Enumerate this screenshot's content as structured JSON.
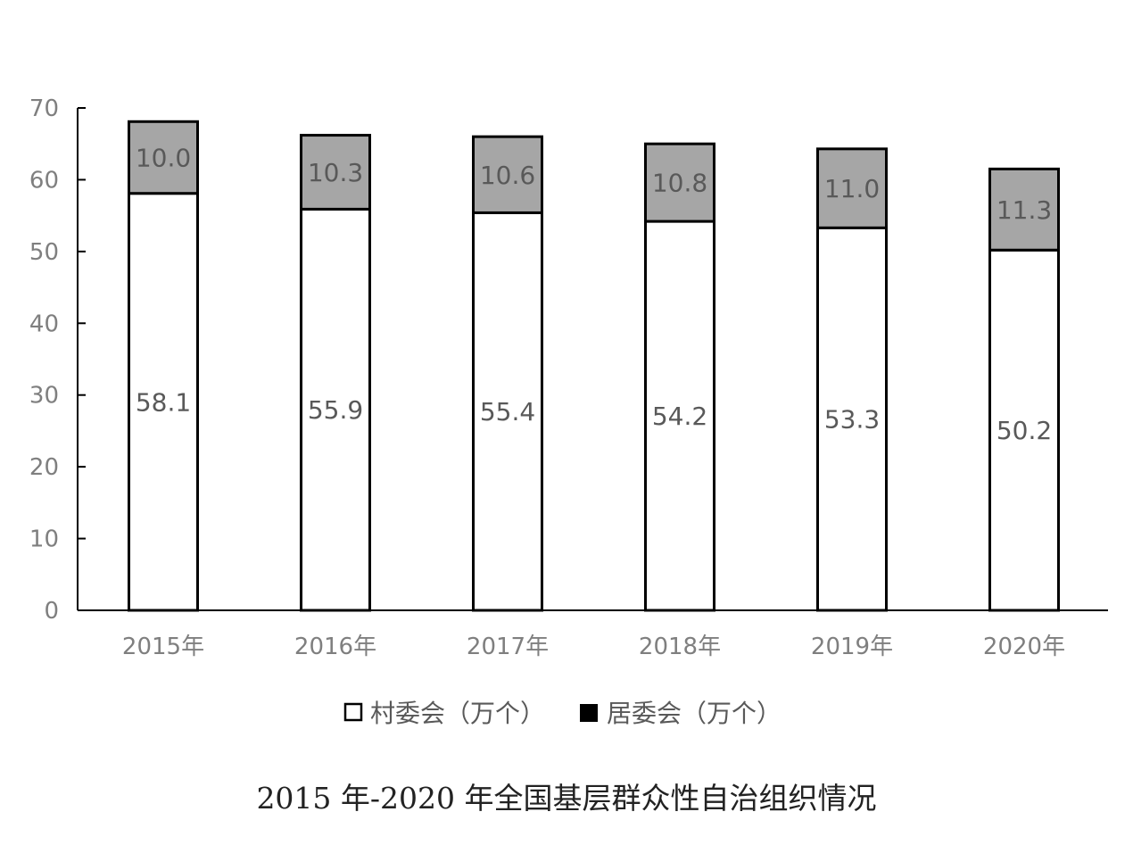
{
  "chart_data": {
    "type": "bar",
    "stacked": true,
    "categories": [
      "2015年",
      "2016年",
      "2017年",
      "2018年",
      "2019年",
      "2020年"
    ],
    "series": [
      {
        "name": "村委会（万个）",
        "values": [
          58.1,
          55.9,
          55.4,
          54.2,
          53.3,
          50.2
        ],
        "color": "#ffffff",
        "labels": [
          "58.1",
          "55.9",
          "55.4",
          "54.2",
          "53.3",
          "50.2"
        ]
      },
      {
        "name": "居委会（万个）",
        "values": [
          10.0,
          10.3,
          10.6,
          10.8,
          11.0,
          11.3
        ],
        "color": "#a6a6a6",
        "labels": [
          "10.0",
          "10.3",
          "10.6",
          "10.8",
          "11.0",
          "11.3"
        ]
      }
    ],
    "yticks": [
      "0",
      "10",
      "20",
      "30",
      "40",
      "50",
      "60",
      "70"
    ],
    "ylim": [
      0,
      70
    ],
    "grid": false,
    "legend_position": "bottom",
    "legend_swatch_colors": [
      "#ffffff",
      "#000000"
    ],
    "caption": "2015 年-2020 年全国基层群众性自治组织情况"
  }
}
